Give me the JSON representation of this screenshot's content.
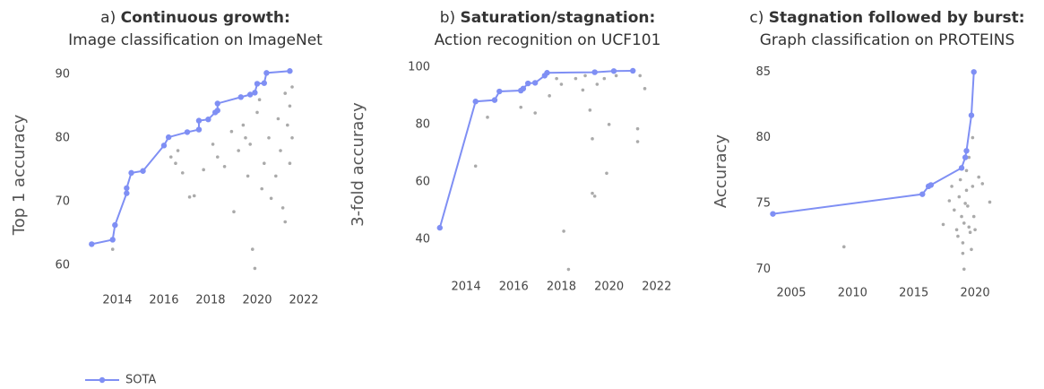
{
  "chart_data": [
    {
      "type": "line",
      "title_prefix": "a)",
      "title": "Continuous growth:",
      "subtitle": "Image classification on ImageNet",
      "y_label": "Top 1 accuracy",
      "xlim": [
        2012.35,
        2022.23
      ],
      "ylim": [
        56.6,
        91.8
      ],
      "xticks": [
        2014,
        2016,
        2018,
        2020,
        2022
      ],
      "yticks": [
        60,
        70,
        80,
        90
      ],
      "grid": false,
      "series": [
        {
          "name": "SOTA",
          "color": "#7f8ff4",
          "x": [
            2012.9,
            2013.8,
            2013.9,
            2014.4,
            2014.4,
            2014.6,
            2015.1,
            2016.0,
            2016.2,
            2017.0,
            2017.5,
            2017.5,
            2017.9,
            2018.2,
            2018.3,
            2018.3,
            2019.3,
            2019.7,
            2019.9,
            2020.0,
            2020.3,
            2020.4,
            2021.4
          ],
          "values": [
            63.3,
            64.0,
            66.3,
            71.3,
            72.1,
            74.5,
            74.8,
            78.8,
            80.1,
            80.9,
            81.3,
            82.7,
            82.9,
            84.0,
            84.3,
            85.4,
            86.4,
            86.8,
            87.1,
            88.5,
            88.6,
            90.2,
            90.5
          ]
        },
        {
          "color": "#aaaaaa",
          "x": [
            2013.8,
            2016.3,
            2016.5,
            2016.6,
            2016.8,
            2017.1,
            2017.3,
            2017.7,
            2018.1,
            2018.3,
            2018.6,
            2018.9,
            2019.0,
            2019.2,
            2019.4,
            2019.5,
            2019.6,
            2019.7,
            2019.8,
            2019.9,
            2020.0,
            2020.1,
            2020.2,
            2020.3,
            2020.5,
            2020.6,
            2020.8,
            2020.9,
            2021.0,
            2021.1,
            2021.2,
            2021.3,
            2021.4,
            2021.4,
            2021.5,
            2021.2,
            2021.5
          ],
          "values": [
            62.5,
            77,
            76,
            78,
            74.5,
            70.7,
            70.9,
            75,
            79,
            77,
            75.5,
            81,
            68.4,
            78,
            82,
            80,
            74,
            79,
            62.5,
            59.5,
            84,
            86,
            72,
            76,
            80,
            70.5,
            74,
            83,
            78,
            69,
            87,
            82,
            76,
            85,
            80,
            66.8,
            88
          ]
        }
      ]
    },
    {
      "type": "line",
      "title_prefix": "b)",
      "title": "Saturation/stagnation:",
      "subtitle": "Action recognition on UCF101",
      "y_label": "3-fold accuracy",
      "xlim": [
        2012.87,
        2022.27
      ],
      "ylim": [
        28.1,
        104
      ],
      "xticks": [
        2014,
        2016,
        2018,
        2020,
        2022
      ],
      "yticks": [
        40,
        60,
        80,
        100
      ],
      "grid": false,
      "series": [
        {
          "color": "#7f8ff4",
          "x": [
            2012.9,
            2014.4,
            2015.2,
            2015.4,
            2016.3,
            2016.4,
            2016.6,
            2016.9,
            2017.3,
            2017.4,
            2019.4,
            2020.2,
            2021.0
          ],
          "values": [
            44,
            88,
            88.5,
            91.5,
            91.8,
            92.5,
            94.3,
            94.5,
            97,
            98,
            98.2,
            98.6,
            98.7
          ]
        },
        {
          "color": "#aaaaaa",
          "x": [
            2014.4,
            2014.9,
            2016.3,
            2016.9,
            2017.5,
            2017.8,
            2018.0,
            2018.1,
            2018.3,
            2018.6,
            2018.9,
            2019.0,
            2019.2,
            2019.3,
            2019.3,
            2019.4,
            2019.5,
            2019.8,
            2019.9,
            2020.0,
            2020.3,
            2021.2,
            2021.2,
            2021.3,
            2021.5
          ],
          "values": [
            65.5,
            82.5,
            86,
            84,
            90,
            96,
            94,
            42.8,
            29.5,
            96,
            92,
            97,
            85,
            75,
            56,
            55,
            94,
            96,
            63,
            80,
            97,
            78.5,
            74,
            97,
            92.5
          ]
        }
      ]
    },
    {
      "type": "line",
      "title_prefix": "c)",
      "title": "Stagnation followed by burst:",
      "subtitle": "Graph classification on PROTEINS",
      "y_label": "Accuracy",
      "xlim": [
        2004.05,
        2022.7
      ],
      "ylim": [
        69.2,
        85.7
      ],
      "xticks": [
        2005,
        2010,
        2015,
        2020
      ],
      "yticks": [
        70,
        75,
        80,
        85
      ],
      "grid": false,
      "series": [
        {
          "color": "#7f8ff4",
          "x": [
            2003.5,
            2015.7,
            2016.2,
            2016.4,
            2018.9,
            2019.2,
            2019.3,
            2019.7,
            2019.9
          ],
          "values": [
            74.2,
            75.7,
            76.3,
            76.4,
            77.7,
            78.5,
            79.0,
            81.7,
            85.0
          ]
        },
        {
          "color": "#aaaaaa",
          "x": [
            2009.3,
            2017.4,
            2017.9,
            2018.1,
            2018.3,
            2018.5,
            2018.6,
            2018.7,
            2018.8,
            2018.9,
            2019.0,
            2019.0,
            2019.1,
            2019.1,
            2019.2,
            2019.3,
            2019.3,
            2019.4,
            2019.5,
            2019.6,
            2019.7,
            2019.8,
            2019.9,
            2020.0,
            2020.3,
            2020.6,
            2021.2,
            2019.5,
            2019.8
          ],
          "values": [
            71.7,
            73.4,
            75.2,
            76.3,
            74.5,
            73,
            72.5,
            75.5,
            76.8,
            74,
            72,
            71.2,
            70,
            73.5,
            75,
            76,
            77.5,
            74.8,
            73.2,
            72.8,
            71.5,
            76.3,
            74,
            73,
            77,
            76.5,
            75.1,
            78.5,
            80
          ]
        }
      ]
    }
  ]
}
